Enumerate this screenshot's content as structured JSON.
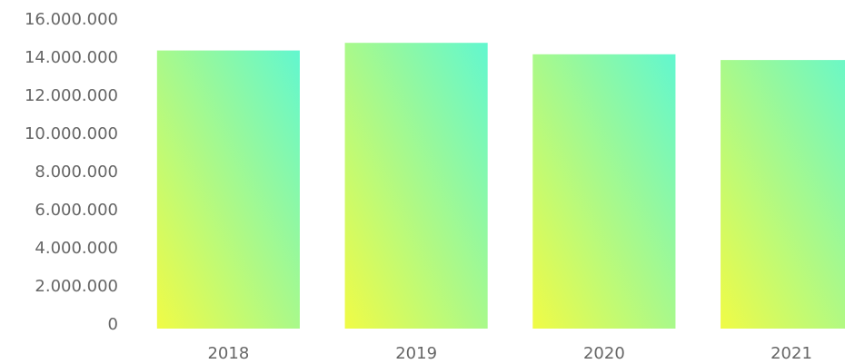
{
  "chart_data": {
    "type": "bar",
    "categories": [
      "2018",
      "2019",
      "2020",
      "2021"
    ],
    "values": [
      14400000,
      14800000,
      14200000,
      13900000
    ],
    "gradient": [
      "#f0fb46",
      "#62f7cf"
    ],
    "ylim": [
      0,
      16000000
    ],
    "yticks": [
      0,
      {
        "value": 2000000,
        "label": "2.000.000"
      },
      {
        "value": 4000000,
        "label": "4.000.000"
      },
      {
        "value": 6000000,
        "label": "6.000.000"
      },
      {
        "value": 8000000,
        "label": "8.000.000"
      },
      {
        "value": 10000000,
        "label": "10.000.000"
      },
      {
        "value": 12000000,
        "label": "12.000.000"
      },
      {
        "value": 14000000,
        "label": "14.000.000"
      },
      {
        "value": 16000000,
        "label": "16.000.000"
      }
    ],
    "grid": false
  }
}
